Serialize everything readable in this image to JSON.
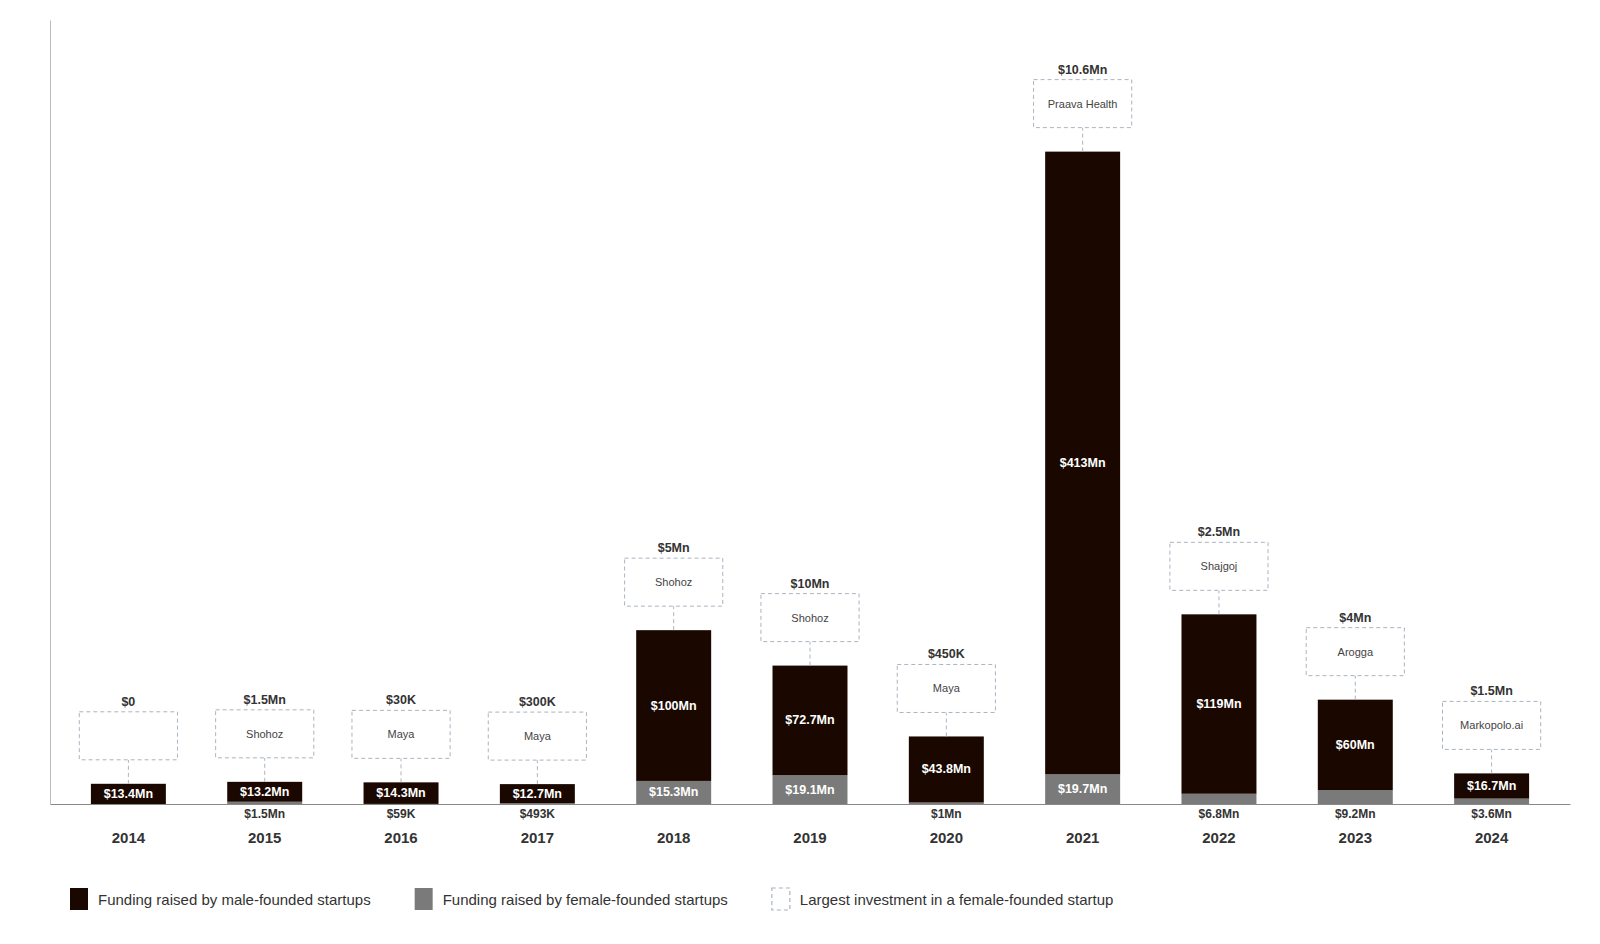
{
  "chart_data": {
    "type": "bar",
    "stacked": true,
    "data_labels": true,
    "grid": false,
    "legend": "bottom-left",
    "tick_labels": "x",
    "categories": [
      "2014",
      "2015",
      "2016",
      "2017",
      "2018",
      "2019",
      "2020",
      "2021",
      "2022",
      "2023",
      "2024"
    ],
    "ylim": [
      0,
      520
    ],
    "series": [
      {
        "name": "Funding raised by female-founded startups",
        "color": "#7a7a7a",
        "values": [
          0.0,
          1.5,
          0.059,
          0.493,
          15.3,
          19.1,
          1.0,
          19.7,
          6.8,
          9.2,
          3.6
        ],
        "value_labels": [
          null,
          "$1.5Mn",
          "$59K",
          "$493K",
          "$15.3Mn",
          "$19.1Mn",
          "$1Mn",
          "$19.7Mn",
          "$6.8Mn",
          "$9.2Mn",
          "$3.6Mn"
        ]
      },
      {
        "name": "Funding raised by male-founded startups",
        "color": "#1a0800",
        "values": [
          13.4,
          13.2,
          14.3,
          12.7,
          100.0,
          72.7,
          43.8,
          413.0,
          119.0,
          60.0,
          16.7
        ],
        "value_labels": [
          "$13.4Mn",
          "$13.2Mn",
          "$14.3Mn",
          "$12.7Mn",
          "$100Mn",
          "$72.7Mn",
          "$43.8Mn",
          "$413Mn",
          "$119Mn",
          "$60Mn",
          "$16.7Mn"
        ]
      }
    ],
    "annotations": {
      "name": "Largest investment in a female-founded startup",
      "values": [
        0,
        1.5,
        0.03,
        0.3,
        5,
        10,
        0.45,
        10.6,
        2.5,
        4,
        1.5
      ],
      "value_labels": [
        "$0",
        "$1.5Mn",
        "$30K",
        "$300K",
        "$5Mn",
        "$10Mn",
        "$450K",
        "$10.6Mn",
        "$2.5Mn",
        "$4Mn",
        "$1.5Mn"
      ],
      "texts": [
        null,
        "Shohoz",
        "Maya",
        "Maya",
        "Shohoz",
        "Shohoz",
        "Maya",
        "Praava Health",
        "Shajgoj",
        "Arogga",
        "Markopolo.ai"
      ]
    }
  }
}
